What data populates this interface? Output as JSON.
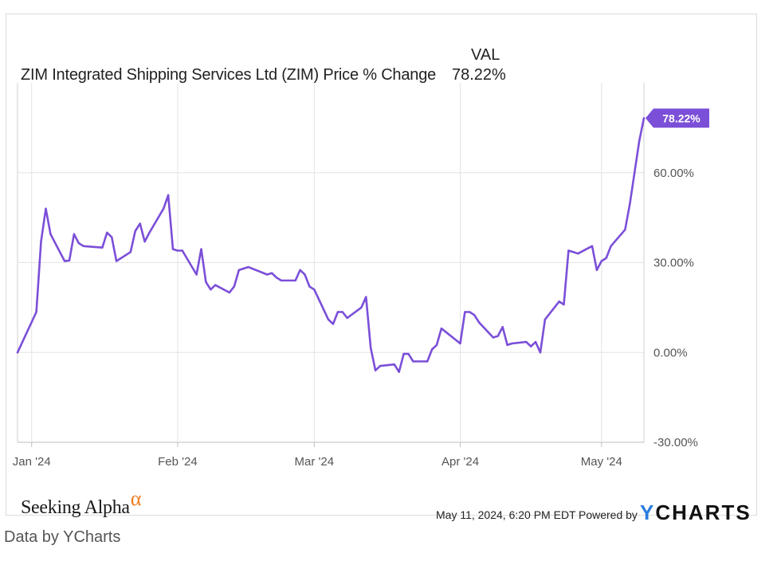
{
  "header": {
    "column_label": "VAL",
    "series_title": "ZIM Integrated Shipping Services Ltd (ZIM) Price % Change",
    "current_value": "78.22%"
  },
  "chart_data": {
    "type": "line",
    "title": "ZIM Integrated Shipping Services Ltd (ZIM) Price % Change",
    "xlabel": "",
    "ylabel": "",
    "x_tick_labels": [
      "Jan '24",
      "Feb '24",
      "Mar '24",
      "Apr '24",
      "May '24"
    ],
    "y_tick_labels": [
      "-30.00%",
      "0.00%",
      "30.00%",
      "60.00%"
    ],
    "y_ticks": [
      -30,
      0,
      30,
      60
    ],
    "ylim": [
      -30,
      90
    ],
    "grid": true,
    "current_label": "78.22%",
    "line_color": "#7b4fd8",
    "series": [
      {
        "name": "ZIM Integrated Shipping Services Ltd (ZIM) Price % Change",
        "x": [
          "2023-12-29",
          "2024-01-02",
          "2024-01-03",
          "2024-01-04",
          "2024-01-05",
          "2024-01-08",
          "2024-01-09",
          "2024-01-10",
          "2024-01-11",
          "2024-01-12",
          "2024-01-16",
          "2024-01-17",
          "2024-01-18",
          "2024-01-19",
          "2024-01-22",
          "2024-01-23",
          "2024-01-24",
          "2024-01-25",
          "2024-01-26",
          "2024-01-29",
          "2024-01-30",
          "2024-01-31",
          "2024-02-01",
          "2024-02-02",
          "2024-02-05",
          "2024-02-06",
          "2024-02-07",
          "2024-02-08",
          "2024-02-09",
          "2024-02-12",
          "2024-02-13",
          "2024-02-14",
          "2024-02-15",
          "2024-02-16",
          "2024-02-20",
          "2024-02-21",
          "2024-02-22",
          "2024-02-23",
          "2024-02-26",
          "2024-02-27",
          "2024-02-28",
          "2024-02-29",
          "2024-03-01",
          "2024-03-04",
          "2024-03-05",
          "2024-03-06",
          "2024-03-07",
          "2024-03-08",
          "2024-03-11",
          "2024-03-12",
          "2024-03-13",
          "2024-03-14",
          "2024-03-15",
          "2024-03-18",
          "2024-03-19",
          "2024-03-20",
          "2024-03-21",
          "2024-03-22",
          "2024-03-25",
          "2024-03-26",
          "2024-03-27",
          "2024-03-28",
          "2024-04-01",
          "2024-04-02",
          "2024-04-03",
          "2024-04-04",
          "2024-04-05",
          "2024-04-08",
          "2024-04-09",
          "2024-04-10",
          "2024-04-11",
          "2024-04-12",
          "2024-04-15",
          "2024-04-16",
          "2024-04-17",
          "2024-04-18",
          "2024-04-19",
          "2024-04-22",
          "2024-04-23",
          "2024-04-24",
          "2024-04-25",
          "2024-04-26",
          "2024-04-29",
          "2024-04-30",
          "2024-05-01",
          "2024-05-02",
          "2024-05-03",
          "2024-05-06",
          "2024-05-07",
          "2024-05-08",
          "2024-05-09",
          "2024-05-10"
        ],
        "values": [
          0.0,
          13.5,
          37.0,
          48.0,
          39.5,
          30.5,
          30.7,
          39.5,
          36.5,
          35.5,
          35.0,
          40.0,
          38.5,
          30.5,
          33.5,
          40.5,
          43.0,
          37.0,
          40.0,
          48.0,
          52.5,
          34.5,
          34.0,
          34.0,
          26.0,
          34.5,
          23.5,
          21.0,
          22.5,
          20.0,
          22.0,
          27.5,
          28.0,
          28.5,
          26.0,
          26.5,
          25.0,
          24.0,
          24.0,
          27.5,
          26.0,
          22.0,
          21.0,
          11.0,
          9.5,
          13.5,
          13.5,
          11.5,
          15.0,
          18.5,
          1.5,
          -6.0,
          -4.5,
          -4.0,
          -6.5,
          -0.5,
          -0.5,
          -3.0,
          -3.0,
          1.0,
          2.5,
          8.0,
          3.0,
          13.5,
          13.5,
          12.5,
          10.0,
          5.0,
          5.5,
          8.5,
          2.5,
          3.0,
          3.5,
          2.0,
          3.5,
          0.0,
          11.0,
          17.0,
          16.0,
          34.0,
          33.5,
          33.0,
          35.5,
          27.5,
          30.5,
          31.5,
          35.5,
          41.0,
          49.5,
          60.0,
          70.5,
          78.22
        ]
      }
    ]
  },
  "footer_brand": {
    "seeking": "Seeking Alpha",
    "alpha": "α",
    "timestamp": "May 11, 2024, 6:20 PM EDT",
    "powered_by": "Powered by",
    "ycharts_y": "Y",
    "ycharts_rest": "CHARTS"
  },
  "caption": "Data by YCharts"
}
